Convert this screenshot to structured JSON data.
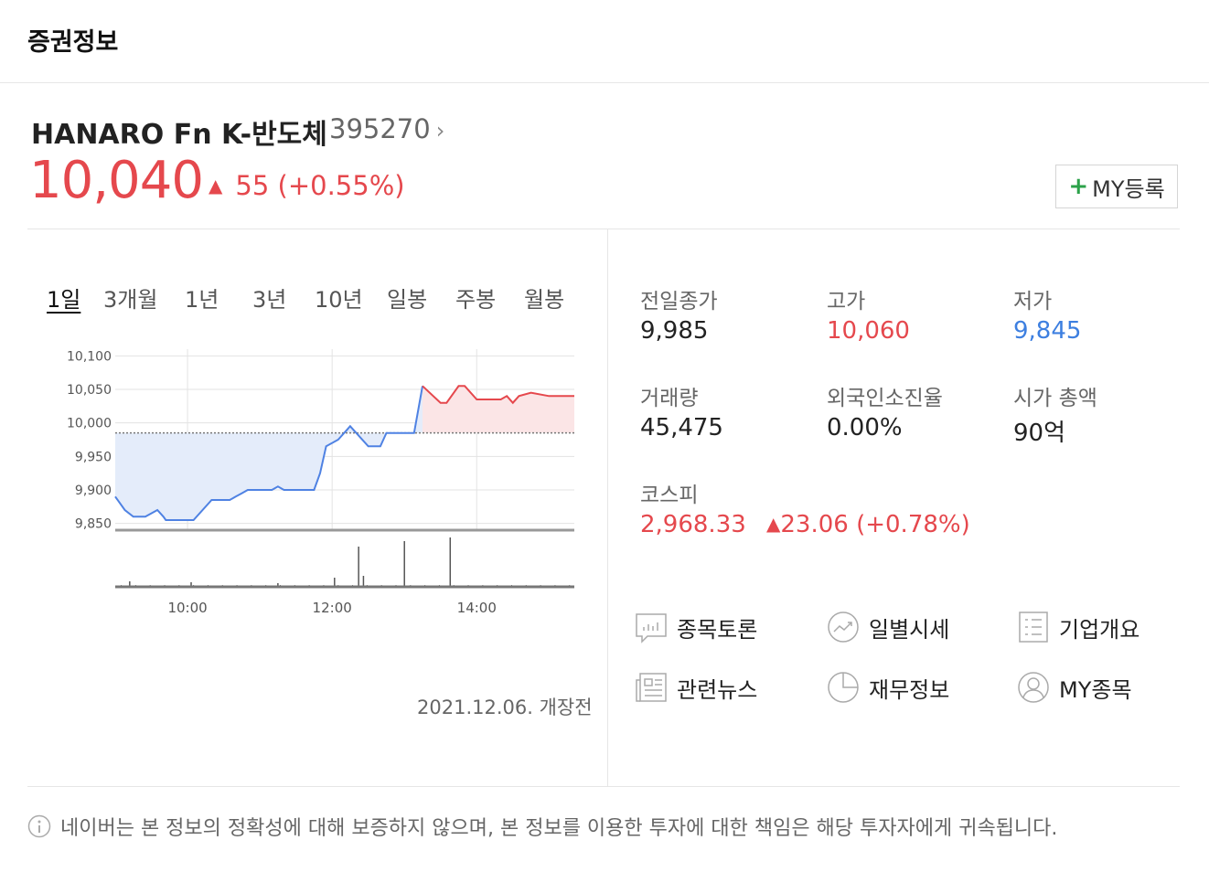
{
  "header": {
    "title": "증권정보"
  },
  "stock": {
    "name": "HANARO Fn K-반도체",
    "code": "395270",
    "code_chevron": "›",
    "price": "10,040",
    "change_arrow": "▲",
    "change": "55 (+0.55%)",
    "my_button_plus": "+",
    "my_button_label": "MY등록"
  },
  "tabs": [
    {
      "label": "1일",
      "active": true
    },
    {
      "label": "3개월"
    },
    {
      "label": "1년"
    },
    {
      "label": "3년"
    },
    {
      "label": "10년"
    },
    {
      "label": "일봉"
    },
    {
      "label": "주봉"
    },
    {
      "label": "월봉"
    }
  ],
  "chart_data": {
    "type": "line",
    "y_tick_labels": [
      "10,100",
      "10,050",
      "10,000",
      "9,950",
      "9,900",
      "9,850"
    ],
    "x_tick_labels": [
      "10:00",
      "12:00",
      "14:00"
    ],
    "ylim": [
      9840,
      10110
    ],
    "previous_close": 9985,
    "x_unit": "minutes since 09:00",
    "series": [
      {
        "values_x": [
          0,
          8,
          15,
          25,
          35,
          40,
          42,
          45,
          65,
          80,
          90,
          95,
          100,
          105,
          110,
          125,
          130,
          135,
          140,
          145,
          165,
          170,
          175,
          185,
          195,
          210,
          220,
          225,
          235,
          248,
          255,
          270,
          275,
          285,
          290,
          300,
          310,
          320,
          325,
          330,
          335,
          345,
          360,
          381
        ],
        "values_y": [
          9890,
          9870,
          9860,
          9860,
          9870,
          9860,
          9855,
          9855,
          9855,
          9885,
          9885,
          9885,
          9890,
          9895,
          9900,
          9900,
          9900,
          9905,
          9900,
          9900,
          9900,
          9925,
          9965,
          9975,
          9995,
          9965,
          9965,
          9985,
          9985,
          9985,
          10055,
          10030,
          10030,
          10055,
          10055,
          10035,
          10035,
          10035,
          10040,
          10030,
          10040,
          10045,
          10040,
          10040
        ]
      }
    ],
    "volume_spikes_x": [
      12,
      63,
      135,
      182,
      202,
      206,
      240,
      278
    ],
    "volume_spikes_h": [
      6,
      5,
      4,
      10,
      44,
      12,
      50,
      54
    ]
  },
  "chart_date": "2021.12.06. 개장전",
  "info": {
    "prev_close_label": "전일종가",
    "prev_close": "9,985",
    "high_label": "고가",
    "high": "10,060",
    "low_label": "저가",
    "low": "9,845",
    "volume_label": "거래량",
    "volume": "45,475",
    "foreign_label": "외국인소진율",
    "foreign": "0.00%",
    "mcap_label": "시가 총액",
    "mcap": "90억",
    "kospi_label": "코스피",
    "kospi": "2,968.33",
    "kospi_arrow": "▲",
    "kospi_change": "23.06 (+0.78%)"
  },
  "links": {
    "discussion": "종목토론",
    "daily_price": "일별시세",
    "company": "기업개요",
    "news": "관련뉴스",
    "finance": "재무정보",
    "my_stock": "MY종목"
  },
  "disclaimer": "네이버는 본 정보의 정확성에 대해 보증하지 않으며, 본 정보를 이용한 투자에 대한 책임은 해당 투자자에게 귀속됩니다."
}
